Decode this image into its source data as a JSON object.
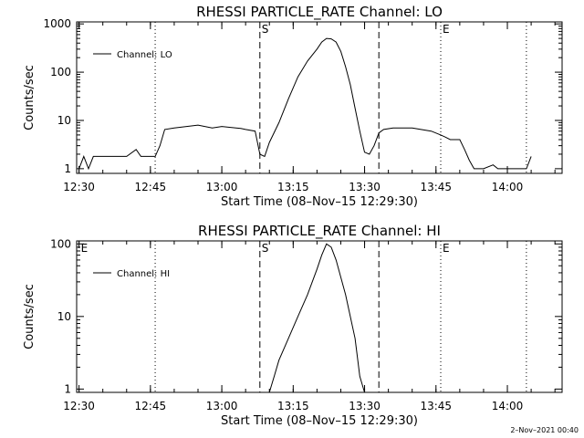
{
  "footer": {
    "date": "2–Nov–2021 00:40"
  },
  "chart_data": [
    {
      "type": "line",
      "title": "RHESSI PARTICLE_RATE Channel: LO",
      "xlabel": "Start Time (08–Nov–15 12:29:30)",
      "ylabel": "Counts/sec",
      "yscale": "log",
      "ylim": [
        0.8,
        1100
      ],
      "xlim_minutes": [
        0,
        102
      ],
      "x_ticks": [
        "12:30",
        "12:45",
        "13:00",
        "13:15",
        "13:30",
        "13:45",
        "14:00"
      ],
      "y_ticks": [
        "1",
        "10",
        "100",
        "1000"
      ],
      "legend": {
        "entry": "Channel: LO",
        "placement": "top-left"
      },
      "event_markers": [
        {
          "label": "",
          "time": "12:46",
          "style": "dotted"
        },
        {
          "label": "S",
          "time": "13:08",
          "style": "dashed"
        },
        {
          "label": "",
          "time": "13:33",
          "style": "dashed"
        },
        {
          "label": "E",
          "time": "13:46",
          "style": "dotted"
        },
        {
          "label": "",
          "time": "14:04",
          "style": "dotted"
        }
      ],
      "series": [
        {
          "name": "Channel: LO",
          "x": [
            "12:30",
            "12:31",
            "12:32",
            "12:33",
            "12:40",
            "12:42",
            "12:43",
            "12:45",
            "12:46",
            "12:47",
            "12:48",
            "12:50",
            "12:55",
            "12:58",
            "13:00",
            "13:03",
            "13:04",
            "13:05",
            "13:07",
            "13:08",
            "13:09",
            "13:10",
            "13:12",
            "13:14",
            "13:16",
            "13:18",
            "13:20",
            "13:21",
            "13:22",
            "13:23",
            "13:24",
            "13:25",
            "13:26",
            "13:27",
            "13:28",
            "13:29",
            "13:30",
            "13:31",
            "13:32",
            "13:33",
            "13:34",
            "13:36",
            "13:40",
            "13:44",
            "13:46",
            "13:47",
            "13:48",
            "13:50",
            "13:51",
            "13:52",
            "13:53",
            "13:55",
            "13:57",
            "13:58",
            "14:02",
            "14:04",
            "14:05"
          ],
          "y": [
            1.0,
            1.8,
            1.0,
            1.8,
            1.8,
            2.5,
            1.8,
            1.8,
            1.8,
            3.0,
            6.5,
            7.0,
            8.0,
            7.0,
            7.5,
            7.0,
            6.8,
            6.5,
            6.0,
            2.0,
            1.8,
            3.5,
            9.0,
            28,
            80,
            170,
            300,
            420,
            500,
            490,
            420,
            270,
            130,
            55,
            18,
            6,
            2.2,
            2.0,
            3.0,
            5.5,
            6.5,
            7.0,
            7.0,
            6.0,
            5.0,
            4.5,
            4.0,
            4.0,
            2.5,
            1.5,
            1.0,
            1.0,
            1.2,
            1.0,
            1.0,
            1.0,
            1.8
          ]
        }
      ]
    },
    {
      "type": "line",
      "title": "RHESSI PARTICLE_RATE Channel: HI",
      "xlabel": "Start Time (08–Nov–15 12:29:30)",
      "ylabel": "Counts/sec",
      "yscale": "log",
      "ylim": [
        0.9,
        110
      ],
      "xlim_minutes": [
        0,
        102
      ],
      "x_ticks": [
        "12:30",
        "12:45",
        "13:00",
        "13:15",
        "13:30",
        "13:45",
        "14:00"
      ],
      "y_ticks": [
        "1",
        "10",
        "100"
      ],
      "legend": {
        "entry": "Channel: HI",
        "placement": "top-left"
      },
      "event_markers": [
        {
          "label": "E",
          "time": "12:30",
          "style": "none"
        },
        {
          "label": "",
          "time": "12:46",
          "style": "dotted"
        },
        {
          "label": "S",
          "time": "13:08",
          "style": "dashed"
        },
        {
          "label": "",
          "time": "13:33",
          "style": "dashed"
        },
        {
          "label": "E",
          "time": "13:46",
          "style": "dotted"
        },
        {
          "label": "",
          "time": "14:04",
          "style": "dotted"
        }
      ],
      "series": [
        {
          "name": "Channel: HI",
          "x": [
            "13:10",
            "13:11",
            "13:12",
            "13:14",
            "13:16",
            "13:18",
            "13:20",
            "13:21",
            "13:22",
            "13:23",
            "13:24",
            "13:26",
            "13:28",
            "13:29",
            "13:30"
          ],
          "y": [
            0.9,
            1.5,
            2.5,
            5,
            10,
            20,
            45,
            70,
            100,
            90,
            60,
            20,
            5,
            1.5,
            0.9
          ]
        }
      ]
    }
  ]
}
